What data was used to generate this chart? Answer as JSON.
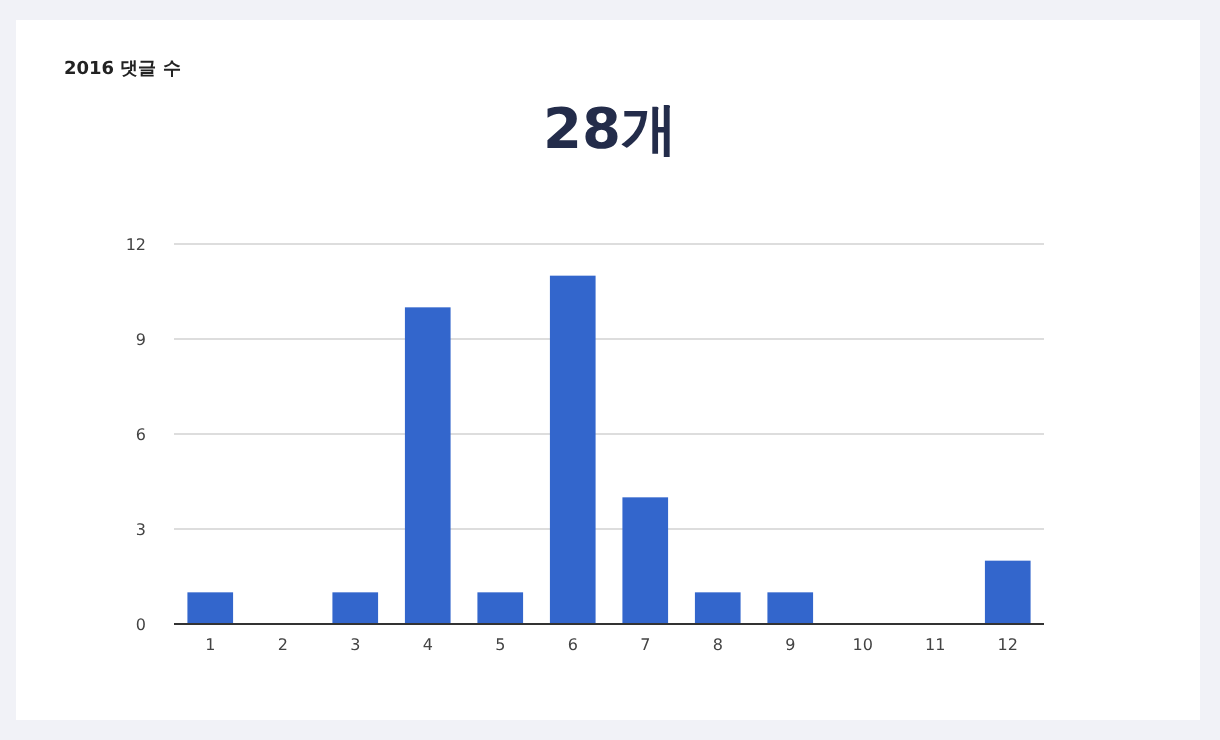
{
  "chart_data": {
    "type": "bar",
    "title": "2016 댓글 수",
    "subtitle": "28개",
    "categories": [
      "1",
      "2",
      "3",
      "4",
      "5",
      "6",
      "7",
      "8",
      "9",
      "10",
      "11",
      "12"
    ],
    "values": [
      1,
      0,
      1,
      10,
      1,
      11,
      4,
      1,
      1,
      0,
      0,
      2
    ],
    "color": "#3366cc",
    "ylim": [
      0,
      12
    ],
    "yticks": [
      0,
      3,
      6,
      9,
      12
    ],
    "grid": "y"
  }
}
